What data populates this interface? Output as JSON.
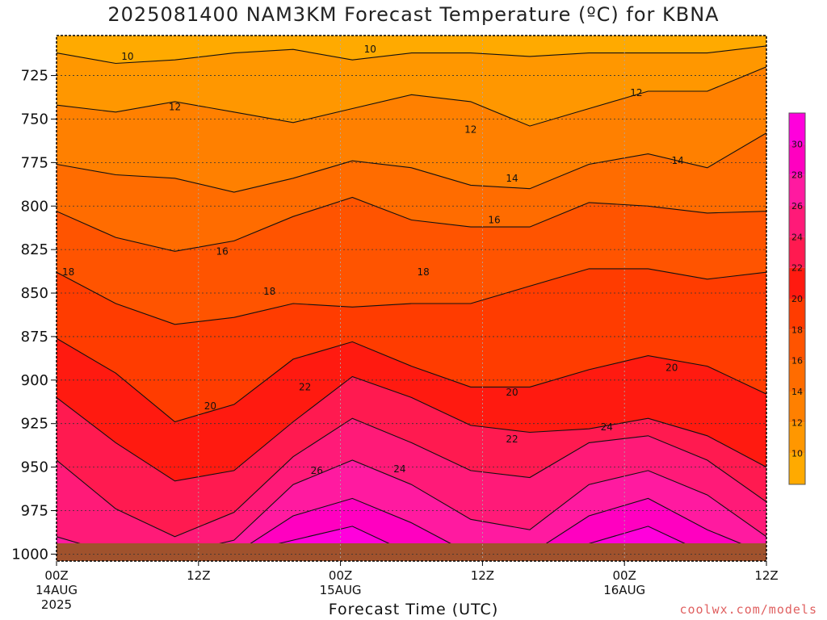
{
  "chart_data": {
    "type": "heatmap",
    "title": "2025081400 NAM3KM Forecast Temperature (ºC) for KBNA",
    "xlabel": "Forecast Time (UTC)",
    "ylabel": "",
    "y_axis": {
      "ticks": [
        725,
        750,
        775,
        800,
        825,
        850,
        875,
        900,
        925,
        950,
        975,
        1000
      ],
      "range": [
        1004,
        702
      ],
      "units": "hPa"
    },
    "x_axis": {
      "range_hours": [
        0,
        60
      ],
      "ticks": [
        {
          "hour": 0,
          "label": "00Z",
          "date": "14AUG",
          "year": "2025"
        },
        {
          "hour": 12,
          "label": "12Z"
        },
        {
          "hour": 24,
          "label": "00Z",
          "date": "15AUG"
        },
        {
          "hour": 36,
          "label": "12Z"
        },
        {
          "hour": 48,
          "label": "00Z",
          "date": "16AUG"
        },
        {
          "hour": 60,
          "label": "12Z"
        }
      ]
    },
    "colorbar": {
      "levels": [
        8,
        10,
        12,
        14,
        16,
        18,
        20,
        22,
        24,
        26,
        28,
        30,
        32
      ],
      "labels": [
        10,
        12,
        14,
        16,
        18,
        20,
        22,
        24,
        26,
        28,
        30
      ],
      "colors": [
        "#ffaa00",
        "#ff9700",
        "#ff8000",
        "#ff6c00",
        "#ff5400",
        "#ff3c00",
        "#ff1a10",
        "#ff1a50",
        "#ff1a78",
        "#ff1aa0",
        "#ff00c0",
        "#ff00dc",
        "#ff00ff"
      ]
    },
    "isotherms": [
      {
        "value": 10,
        "pressure": [
          712,
          718,
          716,
          712,
          710,
          716,
          712,
          712,
          714,
          712,
          712,
          712,
          708
        ]
      },
      {
        "value": 12,
        "pressure": [
          742,
          746,
          740,
          746,
          752,
          744,
          736,
          740,
          754,
          744,
          734,
          734,
          720
        ]
      },
      {
        "value": 14,
        "pressure": [
          776,
          782,
          784,
          792,
          784,
          774,
          778,
          788,
          790,
          776,
          770,
          778,
          758
        ]
      },
      {
        "value": 16,
        "pressure": [
          803,
          818,
          826,
          820,
          806,
          795,
          808,
          812,
          812,
          798,
          800,
          804,
          803
        ]
      },
      {
        "value": 18,
        "pressure": [
          838,
          856,
          868,
          864,
          856,
          858,
          856,
          856,
          846,
          836,
          836,
          842,
          838
        ]
      },
      {
        "value": 20,
        "pressure": [
          876,
          896,
          924,
          914,
          888,
          878,
          892,
          904,
          904,
          894,
          886,
          892,
          908
        ]
      },
      {
        "value": 22,
        "pressure": [
          910,
          936,
          958,
          952,
          924,
          898,
          910,
          926,
          930,
          928,
          922,
          932,
          950
        ]
      },
      {
        "value": 24,
        "pressure": [
          946,
          974,
          990,
          976,
          944,
          922,
          936,
          952,
          956,
          936,
          932,
          946,
          970
        ]
      },
      {
        "value": 26,
        "pressure": [
          990,
          1000,
          1000,
          992,
          960,
          946,
          960,
          980,
          986,
          960,
          952,
          966,
          990
        ]
      },
      {
        "value": 28,
        "pressure": [
          1000,
          1000,
          1000,
          1000,
          978,
          968,
          982,
          1000,
          1000,
          978,
          968,
          986,
          1000
        ]
      },
      {
        "value": 30,
        "pressure": [
          1000,
          1000,
          1000,
          1000,
          992,
          984,
          1000,
          1000,
          1000,
          994,
          984,
          1000,
          1000
        ]
      }
    ],
    "contour_labels": [
      {
        "text": "10",
        "hour": 6,
        "p": 714
      },
      {
        "text": "10",
        "hour": 26.5,
        "p": 710
      },
      {
        "text": "12",
        "hour": 10,
        "p": 743
      },
      {
        "text": "12",
        "hour": 35,
        "p": 756
      },
      {
        "text": "12",
        "hour": 49,
        "p": 735
      },
      {
        "text": "14",
        "hour": 38.5,
        "p": 784
      },
      {
        "text": "14",
        "hour": 52.5,
        "p": 774
      },
      {
        "text": "16",
        "hour": 14,
        "p": 826
      },
      {
        "text": "16",
        "hour": 37,
        "p": 808
      },
      {
        "text": "18",
        "hour": 1,
        "p": 838
      },
      {
        "text": "18",
        "hour": 18,
        "p": 849
      },
      {
        "text": "18",
        "hour": 31,
        "p": 838
      },
      {
        "text": "20",
        "hour": 13,
        "p": 915
      },
      {
        "text": "20",
        "hour": 38.5,
        "p": 907
      },
      {
        "text": "20",
        "hour": 52,
        "p": 893
      },
      {
        "text": "22",
        "hour": 21,
        "p": 904
      },
      {
        "text": "22",
        "hour": 38.5,
        "p": 934
      },
      {
        "text": "24",
        "hour": 29,
        "p": 951
      },
      {
        "text": "24",
        "hour": 46.5,
        "p": 927
      },
      {
        "text": "26",
        "hour": 22,
        "p": 952
      }
    ],
    "grid": true
  },
  "watermark": "coolwx.com/models"
}
